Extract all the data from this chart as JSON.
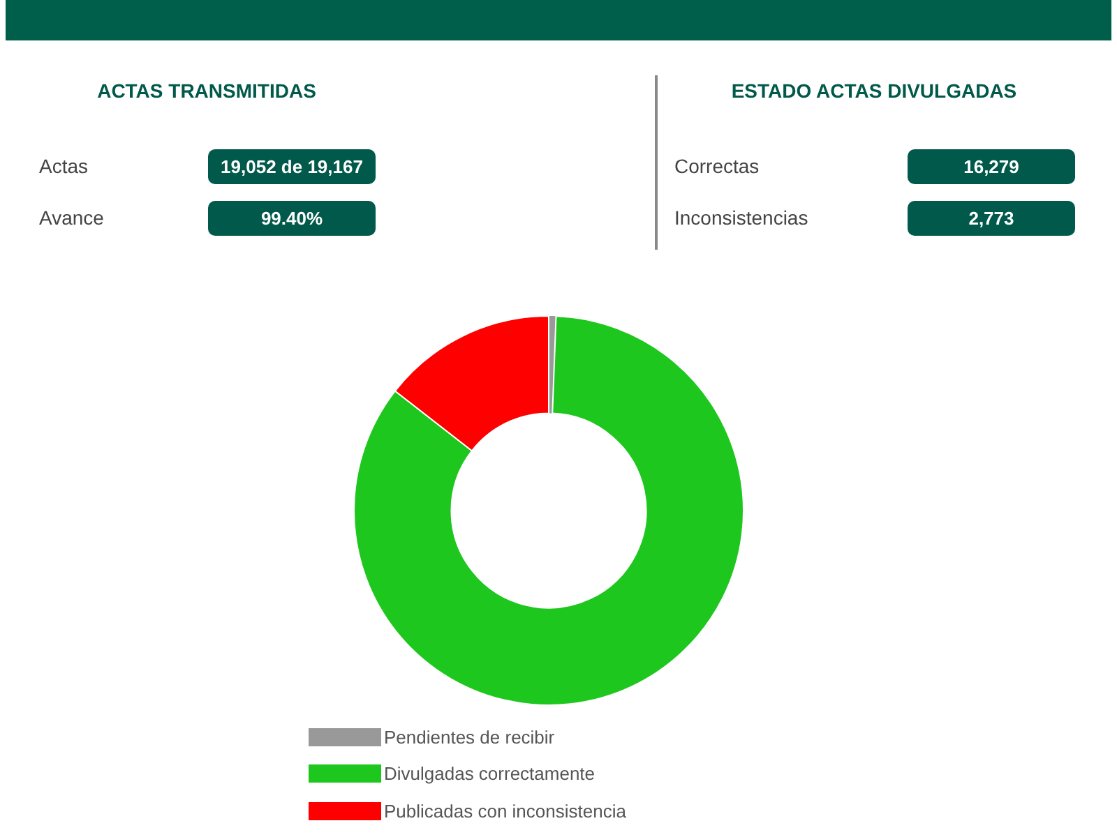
{
  "chart_data": [
    {
      "type": "other",
      "title": "ACTAS TRANSMITIDAS",
      "annotations": [
        "Actas",
        "19,052 de 19,167",
        "Avance",
        "99.40%"
      ]
    },
    {
      "type": "other",
      "title": "ESTADO ACTAS DIVULGADAS",
      "annotations": [
        "Correctas",
        "16,279",
        "Inconsistencias",
        "2,773"
      ]
    },
    {
      "type": "donut",
      "categories": [
        "Pendientes de recibir",
        "Divulgadas correctamente",
        "Publicadas con inconsistencia"
      ],
      "values": [
        0.6,
        84.93,
        14.47
      ],
      "colors": [
        "#999999",
        "#1ec71e",
        "#ff0000"
      ],
      "legend": "bottom"
    }
  ]
}
